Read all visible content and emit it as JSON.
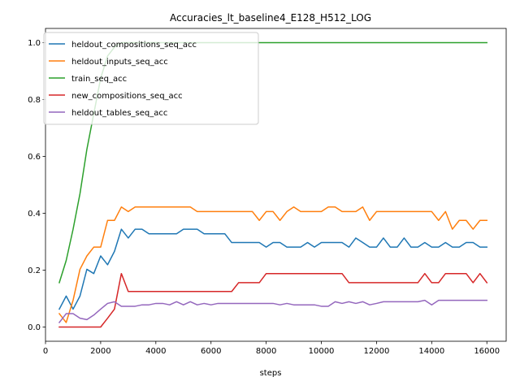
{
  "chart_data": {
    "type": "line",
    "title": "Accuracies_lt_baseline4_E128_H512_LOG",
    "xlabel": "steps",
    "ylabel": "",
    "xlim": [
      0,
      16700
    ],
    "ylim": [
      -0.05,
      1.05
    ],
    "xticks": [
      0,
      2000,
      4000,
      6000,
      8000,
      10000,
      12000,
      14000,
      16000
    ],
    "yticks": [
      0.0,
      0.2,
      0.4,
      0.6,
      0.8,
      1.0
    ],
    "xtick_labels": [
      "0",
      "2000",
      "4000",
      "6000",
      "8000",
      "10000",
      "12000",
      "14000",
      "16000"
    ],
    "ytick_labels": [
      "0.0",
      "0.2",
      "0.4",
      "0.6",
      "0.8",
      "1.0"
    ],
    "grid": false,
    "legend_position": "top-left",
    "series": [
      {
        "name": "heldout_compositions_seq_acc",
        "color": "#1f77b4",
        "x": [
          500,
          750,
          1000,
          1250,
          1500,
          1750,
          2000,
          2250,
          2500,
          2750,
          3000,
          3250,
          3500,
          3750,
          4000,
          4250,
          4500,
          4750,
          5000,
          5250,
          5500,
          5750,
          6000,
          6250,
          6500,
          6750,
          7000,
          7250,
          7500,
          7750,
          8000,
          8250,
          8500,
          8750,
          9000,
          9250,
          9500,
          9750,
          10000,
          10250,
          10500,
          10750,
          11000,
          11250,
          11500,
          11750,
          12000,
          12250,
          12500,
          12750,
          13000,
          13250,
          13500,
          13750,
          14000,
          14250,
          14500,
          14750,
          15000,
          15250,
          15500,
          15750,
          16000
        ],
        "y": [
          0.063,
          0.109,
          0.063,
          0.109,
          0.203,
          0.188,
          0.25,
          0.219,
          0.266,
          0.344,
          0.313,
          0.344,
          0.344,
          0.328,
          0.328,
          0.328,
          0.328,
          0.328,
          0.344,
          0.344,
          0.344,
          0.328,
          0.328,
          0.328,
          0.328,
          0.297,
          0.297,
          0.297,
          0.297,
          0.297,
          0.281,
          0.297,
          0.297,
          0.281,
          0.281,
          0.281,
          0.297,
          0.281,
          0.297,
          0.297,
          0.297,
          0.297,
          0.281,
          0.313,
          0.297,
          0.281,
          0.281,
          0.313,
          0.281,
          0.281,
          0.313,
          0.281,
          0.281,
          0.297,
          0.281,
          0.281,
          0.297,
          0.281,
          0.281,
          0.297,
          0.297,
          0.281,
          0.281
        ]
      },
      {
        "name": "heldout_inputs_seq_acc",
        "color": "#ff7f0e",
        "x": [
          500,
          750,
          1000,
          1250,
          1500,
          1750,
          2000,
          2250,
          2500,
          2750,
          3000,
          3250,
          3500,
          3750,
          4000,
          4250,
          4500,
          4750,
          5000,
          5250,
          5500,
          5750,
          6000,
          6250,
          6500,
          6750,
          7000,
          7250,
          7500,
          7750,
          8000,
          8250,
          8500,
          8750,
          9000,
          9250,
          9500,
          9750,
          10000,
          10250,
          10500,
          10750,
          11000,
          11250,
          11500,
          11750,
          12000,
          12250,
          12500,
          12750,
          13000,
          13250,
          13500,
          13750,
          14000,
          14250,
          14500,
          14750,
          15000,
          15250,
          15500,
          15750,
          16000
        ],
        "y": [
          0.047,
          0.016,
          0.094,
          0.203,
          0.25,
          0.281,
          0.281,
          0.375,
          0.375,
          0.422,
          0.406,
          0.422,
          0.422,
          0.422,
          0.422,
          0.422,
          0.422,
          0.422,
          0.422,
          0.422,
          0.406,
          0.406,
          0.406,
          0.406,
          0.406,
          0.406,
          0.406,
          0.406,
          0.406,
          0.375,
          0.406,
          0.406,
          0.375,
          0.406,
          0.422,
          0.406,
          0.406,
          0.406,
          0.406,
          0.422,
          0.422,
          0.406,
          0.406,
          0.406,
          0.422,
          0.375,
          0.406,
          0.406,
          0.406,
          0.406,
          0.406,
          0.406,
          0.406,
          0.406,
          0.406,
          0.375,
          0.406,
          0.344,
          0.375,
          0.375,
          0.344,
          0.375,
          0.375
        ]
      },
      {
        "name": "train_seq_acc",
        "color": "#2ca02c",
        "x": [
          500,
          750,
          1000,
          1250,
          1500,
          1750,
          2000,
          2250,
          2500,
          2750,
          3000,
          3250,
          3500,
          3750,
          4000,
          4250,
          4500,
          4750,
          5000,
          5250,
          5500,
          5750,
          6000,
          6250,
          6500,
          6750,
          7000,
          7250,
          7500,
          7750,
          8000,
          8250,
          8500,
          8750,
          9000,
          9250,
          9500,
          9750,
          10000,
          10250,
          10500,
          10750,
          11000,
          11250,
          11500,
          11750,
          12000,
          12250,
          12500,
          12750,
          13000,
          13250,
          13500,
          13750,
          14000,
          14250,
          14500,
          14750,
          15000,
          15250,
          15500,
          15750,
          16000
        ],
        "y": [
          0.156,
          0.234,
          0.344,
          0.469,
          0.625,
          0.75,
          0.875,
          0.953,
          0.984,
          1.0,
          1.0,
          1.0,
          1.0,
          1.0,
          1.0,
          1.0,
          1.0,
          1.0,
          1.0,
          1.0,
          1.0,
          1.0,
          1.0,
          1.0,
          1.0,
          1.0,
          1.0,
          1.0,
          1.0,
          1.0,
          1.0,
          1.0,
          1.0,
          1.0,
          1.0,
          1.0,
          1.0,
          1.0,
          1.0,
          1.0,
          1.0,
          1.0,
          1.0,
          1.0,
          1.0,
          1.0,
          1.0,
          1.0,
          1.0,
          1.0,
          1.0,
          1.0,
          1.0,
          1.0,
          1.0,
          1.0,
          1.0,
          1.0,
          1.0,
          1.0,
          1.0,
          1.0,
          1.0
        ]
      },
      {
        "name": "new_compositions_seq_acc",
        "color": "#d62728",
        "x": [
          500,
          750,
          1000,
          1250,
          1500,
          1750,
          2000,
          2250,
          2500,
          2750,
          3000,
          3250,
          3500,
          3750,
          4000,
          4250,
          4500,
          4750,
          5000,
          5250,
          5500,
          5750,
          6000,
          6250,
          6500,
          6750,
          7000,
          7250,
          7500,
          7750,
          8000,
          8250,
          8500,
          8750,
          9000,
          9250,
          9500,
          9750,
          10000,
          10250,
          10500,
          10750,
          11000,
          11250,
          11500,
          11750,
          12000,
          12250,
          12500,
          12750,
          13000,
          13250,
          13500,
          13750,
          14000,
          14250,
          14500,
          14750,
          15000,
          15250,
          15500,
          15750,
          16000
        ],
        "y": [
          0.0,
          0.0,
          0.0,
          0.0,
          0.0,
          0.0,
          0.0,
          0.031,
          0.063,
          0.188,
          0.125,
          0.125,
          0.125,
          0.125,
          0.125,
          0.125,
          0.125,
          0.125,
          0.125,
          0.125,
          0.125,
          0.125,
          0.125,
          0.125,
          0.125,
          0.125,
          0.156,
          0.156,
          0.156,
          0.156,
          0.188,
          0.188,
          0.188,
          0.188,
          0.188,
          0.188,
          0.188,
          0.188,
          0.188,
          0.188,
          0.188,
          0.188,
          0.156,
          0.156,
          0.156,
          0.156,
          0.156,
          0.156,
          0.156,
          0.156,
          0.156,
          0.156,
          0.156,
          0.188,
          0.156,
          0.156,
          0.188,
          0.188,
          0.188,
          0.188,
          0.156,
          0.188,
          0.156
        ]
      },
      {
        "name": "heldout_tables_seq_acc",
        "color": "#9467bd",
        "x": [
          500,
          750,
          1000,
          1250,
          1500,
          1750,
          2000,
          2250,
          2500,
          2750,
          3000,
          3250,
          3500,
          3750,
          4000,
          4250,
          4500,
          4750,
          5000,
          5250,
          5500,
          5750,
          6000,
          6250,
          6500,
          6750,
          7000,
          7250,
          7500,
          7750,
          8000,
          8250,
          8500,
          8750,
          9000,
          9250,
          9500,
          9750,
          10000,
          10250,
          10500,
          10750,
          11000,
          11250,
          11500,
          11750,
          12000,
          12250,
          12500,
          12750,
          13000,
          13250,
          13500,
          13750,
          14000,
          14250,
          14500,
          14750,
          15000,
          15250,
          15500,
          15750,
          16000
        ],
        "y": [
          0.016,
          0.047,
          0.047,
          0.031,
          0.026,
          0.042,
          0.063,
          0.083,
          0.089,
          0.073,
          0.073,
          0.073,
          0.078,
          0.078,
          0.083,
          0.083,
          0.078,
          0.089,
          0.078,
          0.089,
          0.078,
          0.083,
          0.078,
          0.083,
          0.083,
          0.083,
          0.083,
          0.083,
          0.083,
          0.083,
          0.083,
          0.083,
          0.078,
          0.083,
          0.078,
          0.078,
          0.078,
          0.078,
          0.073,
          0.073,
          0.089,
          0.083,
          0.089,
          0.083,
          0.089,
          0.078,
          0.083,
          0.089,
          0.089,
          0.089,
          0.089,
          0.089,
          0.089,
          0.094,
          0.078,
          0.094,
          0.094,
          0.094,
          0.094,
          0.094,
          0.094,
          0.094,
          0.094
        ]
      }
    ]
  }
}
